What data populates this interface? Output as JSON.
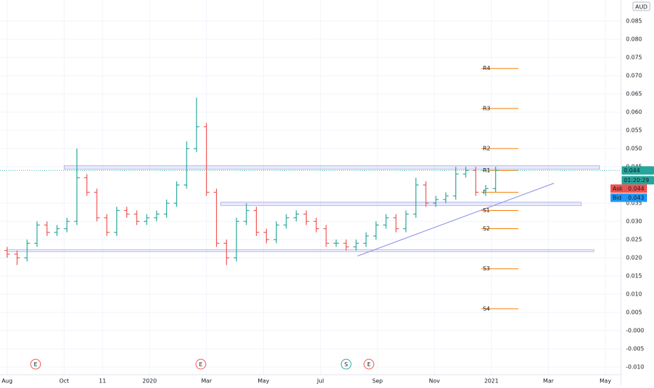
{
  "chart_data": {
    "type": "ohlc",
    "currency": "AUD",
    "x": [
      0,
      0.35,
      0.7,
      1.05,
      1.4,
      1.75,
      2.1,
      2.45,
      2.8,
      3.15,
      3.5,
      3.85,
      4.2,
      4.55,
      4.9,
      5.25,
      5.6,
      5.95,
      6.3,
      6.65,
      7.0,
      7.35,
      7.7,
      8.05,
      8.4,
      8.75,
      9.1,
      9.45,
      9.8,
      10.15,
      10.5,
      10.85,
      11.2,
      11.55,
      11.9,
      12.25,
      12.6,
      12.95,
      13.3,
      13.65,
      14.0,
      14.35,
      14.7,
      15.05,
      15.4,
      15.75,
      16.1,
      16.45,
      16.8,
      17.15
    ],
    "open": [
      0.022,
      0.021,
      0.02,
      0.024,
      0.029,
      0.027,
      0.028,
      0.03,
      0.042,
      0.038,
      0.031,
      0.027,
      0.033,
      0.032,
      0.03,
      0.031,
      0.032,
      0.035,
      0.04,
      0.05,
      0.056,
      0.038,
      0.024,
      0.02,
      0.03,
      0.033,
      0.027,
      0.025,
      0.029,
      0.031,
      0.032,
      0.03,
      0.028,
      0.024,
      0.024,
      0.023,
      0.024,
      0.026,
      0.029,
      0.031,
      0.028,
      0.032,
      0.04,
      0.035,
      0.036,
      0.037,
      0.043,
      0.044,
      0.038,
      0.039
    ],
    "high": [
      0.023,
      0.022,
      0.025,
      0.03,
      0.03,
      0.029,
      0.031,
      0.05,
      0.043,
      0.039,
      0.032,
      0.034,
      0.034,
      0.033,
      0.032,
      0.033,
      0.036,
      0.041,
      0.052,
      0.064,
      0.057,
      0.039,
      0.025,
      0.031,
      0.035,
      0.034,
      0.028,
      0.03,
      0.032,
      0.033,
      0.033,
      0.031,
      0.029,
      0.025,
      0.025,
      0.025,
      0.027,
      0.03,
      0.032,
      0.032,
      0.033,
      0.042,
      0.041,
      0.037,
      0.038,
      0.045,
      0.045,
      0.045,
      0.04,
      0.045
    ],
    "low": [
      0.02,
      0.018,
      0.019,
      0.023,
      0.026,
      0.026,
      0.027,
      0.029,
      0.037,
      0.03,
      0.026,
      0.026,
      0.031,
      0.029,
      0.029,
      0.03,
      0.031,
      0.034,
      0.039,
      0.049,
      0.037,
      0.023,
      0.018,
      0.019,
      0.029,
      0.026,
      0.024,
      0.024,
      0.028,
      0.03,
      0.029,
      0.027,
      0.023,
      0.023,
      0.022,
      0.022,
      0.023,
      0.025,
      0.028,
      0.027,
      0.027,
      0.031,
      0.034,
      0.034,
      0.035,
      0.036,
      0.042,
      0.037,
      0.037,
      0.038
    ],
    "close": [
      0.021,
      0.02,
      0.024,
      0.029,
      0.027,
      0.028,
      0.03,
      0.042,
      0.038,
      0.031,
      0.027,
      0.033,
      0.032,
      0.03,
      0.031,
      0.032,
      0.035,
      0.04,
      0.05,
      0.056,
      0.038,
      0.024,
      0.02,
      0.03,
      0.033,
      0.027,
      0.025,
      0.029,
      0.031,
      0.032,
      0.03,
      0.028,
      0.024,
      0.024,
      0.023,
      0.024,
      0.026,
      0.029,
      0.031,
      0.028,
      0.032,
      0.04,
      0.035,
      0.036,
      0.037,
      0.043,
      0.044,
      0.038,
      0.039,
      0.044
    ],
    "up_color": "#26a69a",
    "down_color": "#ef5350",
    "grid": true,
    "xlim": [
      -0.25,
      21.55
    ],
    "xticks": [
      {
        "value": 0,
        "label": "Aug"
      },
      {
        "value": 2,
        "label": "Oct"
      },
      {
        "value": 3.35,
        "label": "11"
      },
      {
        "value": 5,
        "label": "2020"
      },
      {
        "value": 7,
        "label": "Mar"
      },
      {
        "value": 9,
        "label": "May"
      },
      {
        "value": 11,
        "label": "Jul"
      },
      {
        "value": 13,
        "label": "Sep"
      },
      {
        "value": 15,
        "label": "Nov"
      },
      {
        "value": 17,
        "label": "2021"
      },
      {
        "value": 19,
        "label": "Mar"
      },
      {
        "value": 21,
        "label": "May"
      }
    ],
    "ylim": [
      -0.0121,
      0.0908
    ],
    "yticks": [
      0.085,
      {
        "value": 0.08,
        "label": "0.080"
      },
      0.075,
      {
        "value": 0.07,
        "label": "0.070"
      },
      0.065,
      {
        "value": 0.06,
        "label": "0.060"
      },
      0.055,
      {
        "value": 0.05,
        "label": "0.050"
      },
      0.045,
      0.035,
      {
        "value": 0.03,
        "label": "0.030"
      },
      0.025,
      {
        "value": 0.02,
        "label": "0.020"
      },
      0.015,
      {
        "value": 0.01,
        "label": "0.010"
      },
      0.005,
      {
        "value": 0,
        "label": "-0.000"
      },
      -0.005,
      {
        "value": -0.01,
        "label": "-0.010"
      }
    ],
    "zones": [
      {
        "x": [
          2.0,
          20.8
        ],
        "y": [
          0.0443,
          0.0453
        ]
      },
      {
        "x": [
          7.5,
          20.15
        ],
        "y": [
          0.0343,
          0.0353
        ]
      },
      {
        "x": [
          0,
          20.6
        ],
        "y": [
          0.0217,
          0.0222
        ]
      }
    ],
    "trendline": {
      "x": [
        12.3,
        19.2
      ],
      "y": [
        0.0205,
        0.0405
      ],
      "color": "#9598e8"
    },
    "pivot_x": [
      16.65,
      17.95
    ],
    "pivot_color": "#f57c00",
    "pivots": [
      {
        "label": "R4",
        "value": 0.072
      },
      {
        "label": "R3",
        "value": 0.061
      },
      {
        "label": "R2",
        "value": 0.05
      },
      {
        "label": "R1",
        "value": 0.044
      },
      {
        "label": "P",
        "value": 0.038
      },
      {
        "label": "S1",
        "value": 0.033
      },
      {
        "label": "S2",
        "value": 0.028
      },
      {
        "label": "S3",
        "value": 0.017
      },
      {
        "label": "S4",
        "value": 0.006
      }
    ],
    "events": [
      {
        "label": "E",
        "x": 1.0,
        "color": "#ef5350"
      },
      {
        "label": "E",
        "x": 6.8,
        "color": "#ef5350"
      },
      {
        "label": "S",
        "x": 11.9,
        "color": "#26a69a"
      },
      {
        "label": "E",
        "x": 12.7,
        "color": "#ef5350"
      }
    ],
    "last_price": 0.044,
    "countdown": "01:20:29",
    "ask": {
      "label": "Ask",
      "value": 0.044,
      "color": "#ef5350"
    },
    "bid": {
      "label": "Bid",
      "value": 0.043,
      "color": "#2196f3"
    }
  }
}
